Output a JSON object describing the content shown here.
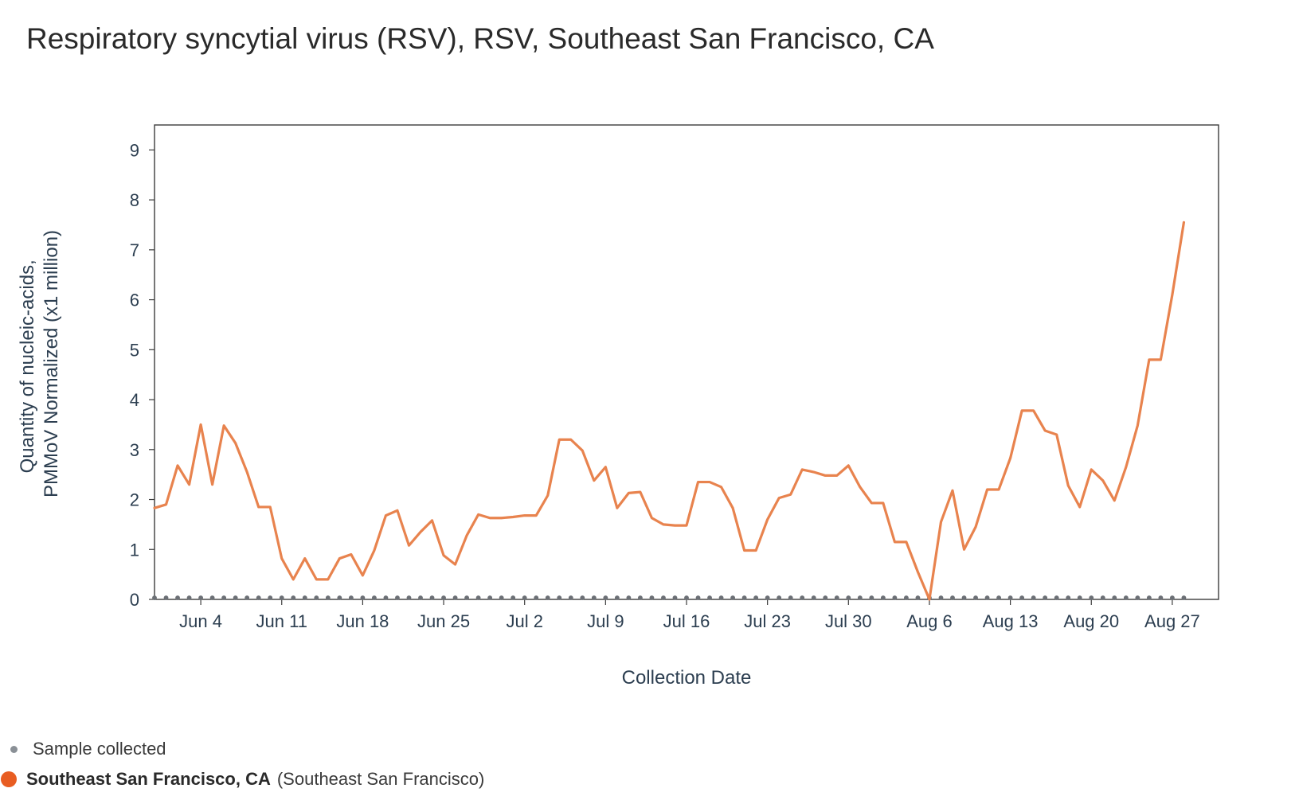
{
  "chart_data": {
    "type": "line",
    "title": "Respiratory syncytial virus (RSV), RSV, Southeast San Francisco, CA",
    "xlabel": "Collection Date",
    "ylabel_lines": [
      "Quantity of nucleic-acids,",
      "PMMoV Normalized (x1 million)"
    ],
    "ylim": [
      0,
      9.5
    ],
    "yticks": [
      0,
      1,
      2,
      3,
      4,
      5,
      6,
      7,
      8,
      9
    ],
    "xlim": [
      "2024-05-31",
      "2024-08-31"
    ],
    "xticks": [
      {
        "date": "2024-06-04",
        "label": "Jun 4"
      },
      {
        "date": "2024-06-11",
        "label": "Jun 11"
      },
      {
        "date": "2024-06-18",
        "label": "Jun 18"
      },
      {
        "date": "2024-06-25",
        "label": "Jun 25"
      },
      {
        "date": "2024-07-02",
        "label": "Jul 2"
      },
      {
        "date": "2024-07-09",
        "label": "Jul 9"
      },
      {
        "date": "2024-07-16",
        "label": "Jul 16"
      },
      {
        "date": "2024-07-23",
        "label": "Jul 23"
      },
      {
        "date": "2024-07-30",
        "label": "Jul 30"
      },
      {
        "date": "2024-08-06",
        "label": "Aug 6"
      },
      {
        "date": "2024-08-13",
        "label": "Aug 13"
      },
      {
        "date": "2024-08-20",
        "label": "Aug 20"
      },
      {
        "date": "2024-08-27",
        "label": "Aug 27"
      }
    ],
    "grid": false,
    "legend_position": "bottom-left",
    "series": [
      {
        "name": "Southeast San Francisco, CA",
        "color": "#E8834E",
        "points": [
          [
            "2024-05-31",
            1.83
          ],
          [
            "2024-06-01",
            1.9
          ],
          [
            "2024-06-02",
            2.68
          ],
          [
            "2024-06-03",
            2.3
          ],
          [
            "2024-06-04",
            3.5
          ],
          [
            "2024-06-05",
            2.3
          ],
          [
            "2024-06-06",
            3.48
          ],
          [
            "2024-06-07",
            3.13
          ],
          [
            "2024-06-08",
            2.55
          ],
          [
            "2024-06-09",
            1.85
          ],
          [
            "2024-06-10",
            1.85
          ],
          [
            "2024-06-11",
            0.82
          ],
          [
            "2024-06-12",
            0.4
          ],
          [
            "2024-06-13",
            0.82
          ],
          [
            "2024-06-14",
            0.4
          ],
          [
            "2024-06-15",
            0.4
          ],
          [
            "2024-06-16",
            0.82
          ],
          [
            "2024-06-17",
            0.9
          ],
          [
            "2024-06-18",
            0.48
          ],
          [
            "2024-06-19",
            0.98
          ],
          [
            "2024-06-20",
            1.68
          ],
          [
            "2024-06-21",
            1.78
          ],
          [
            "2024-06-22",
            1.08
          ],
          [
            "2024-06-23",
            1.35
          ],
          [
            "2024-06-24",
            1.58
          ],
          [
            "2024-06-25",
            0.88
          ],
          [
            "2024-06-26",
            0.7
          ],
          [
            "2024-06-27",
            1.28
          ],
          [
            "2024-06-28",
            1.7
          ],
          [
            "2024-06-29",
            1.63
          ],
          [
            "2024-06-30",
            1.63
          ],
          [
            "2024-07-01",
            1.65
          ],
          [
            "2024-07-02",
            1.68
          ],
          [
            "2024-07-03",
            1.68
          ],
          [
            "2024-07-04",
            2.08
          ],
          [
            "2024-07-05",
            3.2
          ],
          [
            "2024-07-06",
            3.2
          ],
          [
            "2024-07-07",
            2.98
          ],
          [
            "2024-07-08",
            2.38
          ],
          [
            "2024-07-09",
            2.65
          ],
          [
            "2024-07-10",
            1.83
          ],
          [
            "2024-07-11",
            2.13
          ],
          [
            "2024-07-12",
            2.15
          ],
          [
            "2024-07-13",
            1.63
          ],
          [
            "2024-07-14",
            1.5
          ],
          [
            "2024-07-15",
            1.48
          ],
          [
            "2024-07-16",
            1.48
          ],
          [
            "2024-07-17",
            2.35
          ],
          [
            "2024-07-18",
            2.35
          ],
          [
            "2024-07-19",
            2.25
          ],
          [
            "2024-07-20",
            1.83
          ],
          [
            "2024-07-21",
            0.98
          ],
          [
            "2024-07-22",
            0.98
          ],
          [
            "2024-07-23",
            1.6
          ],
          [
            "2024-07-24",
            2.03
          ],
          [
            "2024-07-25",
            2.1
          ],
          [
            "2024-07-26",
            2.6
          ],
          [
            "2024-07-27",
            2.55
          ],
          [
            "2024-07-28",
            2.48
          ],
          [
            "2024-07-29",
            2.48
          ],
          [
            "2024-07-30",
            2.68
          ],
          [
            "2024-07-31",
            2.25
          ],
          [
            "2024-08-01",
            1.93
          ],
          [
            "2024-08-02",
            1.93
          ],
          [
            "2024-08-03",
            1.15
          ],
          [
            "2024-08-04",
            1.15
          ],
          [
            "2024-08-05",
            0.55
          ],
          [
            "2024-08-06",
            0.0
          ],
          [
            "2024-08-07",
            1.55
          ],
          [
            "2024-08-08",
            2.18
          ],
          [
            "2024-08-09",
            1.0
          ],
          [
            "2024-08-10",
            1.45
          ],
          [
            "2024-08-11",
            2.2
          ],
          [
            "2024-08-12",
            2.2
          ],
          [
            "2024-08-13",
            2.83
          ],
          [
            "2024-08-14",
            3.78
          ],
          [
            "2024-08-15",
            3.78
          ],
          [
            "2024-08-16",
            3.38
          ],
          [
            "2024-08-17",
            3.3
          ],
          [
            "2024-08-18",
            2.28
          ],
          [
            "2024-08-19",
            1.85
          ],
          [
            "2024-08-20",
            2.6
          ],
          [
            "2024-08-21",
            2.38
          ],
          [
            "2024-08-22",
            1.98
          ],
          [
            "2024-08-23",
            2.65
          ],
          [
            "2024-08-24",
            3.48
          ],
          [
            "2024-08-25",
            4.8
          ],
          [
            "2024-08-26",
            4.8
          ],
          [
            "2024-08-27",
            6.1
          ],
          [
            "2024-08-28",
            7.55
          ]
        ]
      }
    ],
    "samples": {
      "name": "Sample collected",
      "color": "#6b6f75",
      "first_date": "2024-05-31",
      "last_date": "2024-08-28"
    }
  },
  "legend": {
    "samples_label": "Sample collected",
    "samples_color": "#8a9096",
    "site_label": "Southeast San Francisco, CA",
    "site_sublabel": "(Southeast San Francisco)",
    "site_color": "#E85D22"
  }
}
